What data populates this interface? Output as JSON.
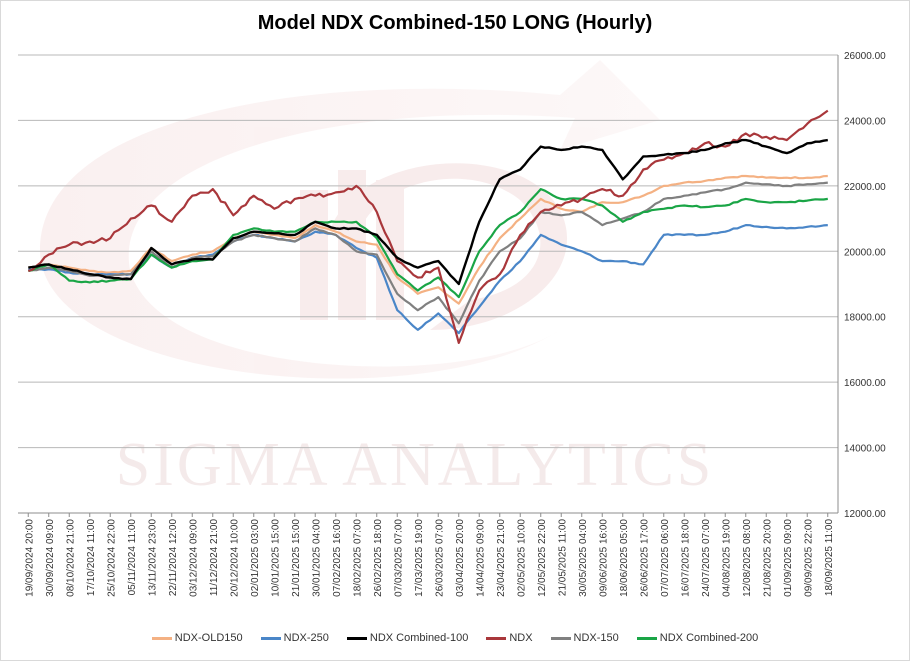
{
  "chart_data": {
    "type": "line",
    "title": "Model NDX Combined-150 LONG (Hourly)",
    "watermark": "Sigma Analytics",
    "ylim": [
      12000,
      26000
    ],
    "yticks": [
      "26000.00",
      "24000.00",
      "22000.00",
      "20000.00",
      "18000.00",
      "16000.00",
      "14000.00",
      "12000.00"
    ],
    "ytick_values": [
      26000,
      24000,
      22000,
      20000,
      18000,
      16000,
      14000,
      12000
    ],
    "grid": true,
    "legend_position": "bottom",
    "x": [
      "19/09/2024 20:00",
      "30/09/2024 09:00",
      "08/10/2024 21:00",
      "17/10/2024 11:00",
      "25/10/2024 22:00",
      "05/11/2024 11:00",
      "13/11/2024 23:00",
      "22/11/2024 12:00",
      "03/12/2024 09:00",
      "11/12/2024 21:00",
      "20/12/2024 10:00",
      "02/01/2025 03:00",
      "10/01/2025 15:00",
      "21/01/2025 15:00",
      "30/01/2025 04:00",
      "07/02/2025 16:00",
      "18/02/2025 07:00",
      "26/02/2025 18:00",
      "07/03/2025 07:00",
      "17/03/2025 19:00",
      "26/03/2025 07:00",
      "03/04/2025 20:00",
      "14/04/2025 09:00",
      "23/04/2025 21:00",
      "02/05/2025 10:00",
      "12/05/2025 22:00",
      "21/05/2025 11:00",
      "30/05/2025 04:00",
      "09/06/2025 16:00",
      "18/06/2025 05:00",
      "26/06/2025 17:00",
      "07/07/2025 06:00",
      "16/07/2025 18:00",
      "24/07/2025 07:00",
      "04/08/2025 19:00",
      "12/08/2025 08:00",
      "21/08/2025 20:00",
      "01/09/2025 09:00",
      "09/09/2025 22:00",
      "18/09/2025 11:00"
    ],
    "series": [
      {
        "name": "NDX-OLD150",
        "color": "#f4b183",
        "values": [
          19500,
          19600,
          19500,
          19400,
          19350,
          19400,
          20100,
          19700,
          19900,
          20000,
          20400,
          20600,
          20500,
          20400,
          20800,
          20600,
          20300,
          20200,
          19200,
          18700,
          18900,
          18400,
          19500,
          20400,
          21000,
          21600,
          21300,
          21200,
          21500,
          21500,
          21700,
          22000,
          22100,
          22150,
          22250,
          22300,
          22250,
          22250,
          22250,
          22300
        ]
      },
      {
        "name": "NDX-250",
        "color": "#4a86c8",
        "values": [
          19450,
          19450,
          19350,
          19300,
          19300,
          19300,
          19900,
          19500,
          19800,
          19900,
          20300,
          20500,
          20400,
          20300,
          20600,
          20500,
          20100,
          19800,
          18200,
          17600,
          18100,
          17500,
          18300,
          19100,
          19700,
          20500,
          20200,
          20000,
          19700,
          19700,
          19600,
          20500,
          20500,
          20500,
          20600,
          20800,
          20750,
          20700,
          20750,
          20800
        ]
      },
      {
        "name": "NDX Combined-100",
        "color": "#000000",
        "values": [
          19500,
          19600,
          19450,
          19300,
          19200,
          19150,
          20100,
          19600,
          19750,
          19750,
          20400,
          20600,
          20550,
          20500,
          20900,
          20700,
          20700,
          20500,
          19800,
          19500,
          19700,
          19000,
          20900,
          22200,
          22500,
          23200,
          23100,
          23200,
          23100,
          22200,
          22900,
          22950,
          23000,
          23100,
          23300,
          23400,
          23200,
          23000,
          23300,
          23400
        ]
      },
      {
        "name": "NDX",
        "color": "#a9373b",
        "values": [
          19400,
          19900,
          20200,
          20300,
          20400,
          21000,
          21400,
          20900,
          21700,
          21900,
          21100,
          21700,
          21300,
          21600,
          21700,
          21800,
          22000,
          21200,
          19700,
          19200,
          19500,
          17200,
          18800,
          19300,
          20500,
          21200,
          21400,
          21600,
          21900,
          21700,
          22500,
          22800,
          23000,
          23300,
          23200,
          23600,
          23500,
          23400,
          23900,
          24300
        ]
      },
      {
        "name": "NDX-150",
        "color": "#808080",
        "values": [
          19400,
          19500,
          19400,
          19250,
          19250,
          19300,
          20000,
          19500,
          19800,
          19850,
          20300,
          20500,
          20400,
          20300,
          20700,
          20500,
          20000,
          19900,
          18700,
          18200,
          18600,
          17800,
          19100,
          20000,
          20400,
          21200,
          21100,
          21200,
          20800,
          21000,
          21200,
          21600,
          21700,
          21800,
          21900,
          22100,
          22050,
          22000,
          22050,
          22100
        ]
      },
      {
        "name": "NDX Combined-200",
        "color": "#1aa546",
        "values": [
          19400,
          19600,
          19100,
          19050,
          19100,
          19150,
          19900,
          19500,
          19700,
          19750,
          20500,
          20700,
          20600,
          20600,
          20900,
          20900,
          20900,
          20400,
          19300,
          18800,
          19200,
          18600,
          20000,
          20800,
          21200,
          21900,
          21600,
          21600,
          21400,
          20900,
          21200,
          21300,
          21400,
          21350,
          21400,
          21600,
          21500,
          21500,
          21550,
          21600
        ]
      }
    ]
  }
}
